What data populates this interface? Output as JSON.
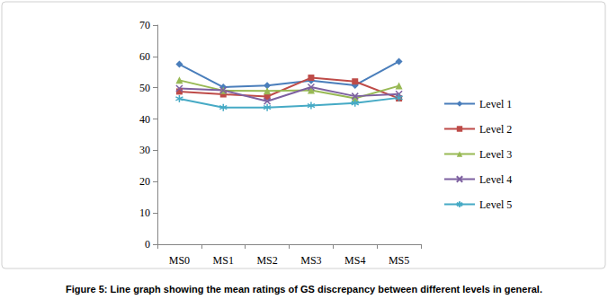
{
  "chart_data": {
    "type": "line",
    "title": "Figure 5: Line graph showing the mean ratings of GS discrepancy between different levels in general.",
    "categories": [
      "MS0",
      "MS1",
      "MS2",
      "MS3",
      "MS4",
      "MS5"
    ],
    "series": [
      {
        "name": "Level 1",
        "color": "#4a7ebb",
        "marker": "diamond",
        "values": [
          57.5,
          50.2,
          50.7,
          52.3,
          50.8,
          58.4
        ]
      },
      {
        "name": "Level 2",
        "color": "#be4b48",
        "marker": "square",
        "values": [
          48.8,
          47.9,
          47.2,
          53.2,
          52.0,
          46.6
        ]
      },
      {
        "name": "Level 3",
        "color": "#98b954",
        "marker": "triangle",
        "values": [
          52.4,
          49.1,
          49.0,
          49.2,
          46.6,
          50.6
        ]
      },
      {
        "name": "Level 4",
        "color": "#7d60a0",
        "marker": "x",
        "values": [
          49.8,
          49.2,
          45.7,
          50.2,
          47.3,
          48.0
        ]
      },
      {
        "name": "Level 5",
        "color": "#46aac5",
        "marker": "asterisk",
        "values": [
          46.5,
          43.7,
          43.7,
          44.3,
          45.1,
          46.8
        ]
      }
    ],
    "ylim": [
      0,
      70
    ],
    "yticks": [
      0,
      10,
      20,
      30,
      40,
      50,
      60,
      70
    ],
    "grid": false,
    "legend": "right"
  }
}
